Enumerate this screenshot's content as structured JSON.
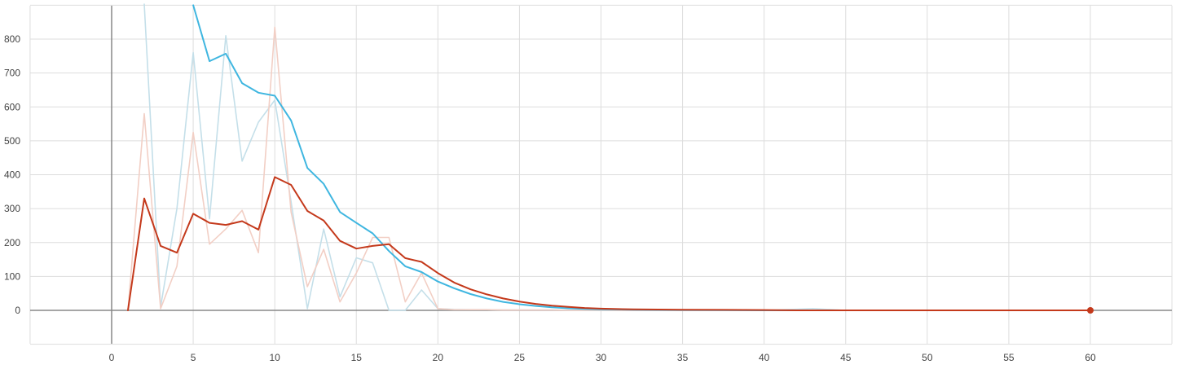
{
  "chart_data": {
    "type": "line",
    "title": "",
    "xlabel": "",
    "ylabel": "",
    "xlim": [
      -5,
      65
    ],
    "ylim": [
      -100,
      900
    ],
    "grid": true,
    "x_ticks": [
      0,
      5,
      10,
      15,
      20,
      25,
      30,
      35,
      40,
      45,
      50,
      55,
      60
    ],
    "y_ticks": [
      0,
      100,
      200,
      300,
      400,
      500,
      600,
      700,
      800
    ],
    "series": [
      {
        "color": "#c4dfe9",
        "role": "raw",
        "x": [
          2,
          3,
          4,
          5,
          6,
          7,
          8,
          9,
          10,
          11,
          12,
          13,
          14,
          15,
          16,
          17,
          18,
          19,
          20,
          21,
          22,
          23,
          24,
          25,
          26,
          27,
          28,
          29,
          30,
          35,
          40,
          43,
          45,
          50,
          55,
          60
        ],
        "y": [
          1000,
          10,
          300,
          760,
          270,
          810,
          440,
          555,
          620,
          320,
          5,
          240,
          40,
          155,
          140,
          0,
          0,
          60,
          5,
          3,
          2,
          2,
          1,
          1,
          1,
          1,
          0,
          0,
          0,
          0,
          0,
          5,
          0,
          0,
          0,
          0
        ]
      },
      {
        "color": "#f2cfc5",
        "role": "raw",
        "x": [
          1,
          2,
          3,
          4,
          5,
          6,
          7,
          8,
          9,
          10,
          11,
          12,
          13,
          14,
          15,
          16,
          17,
          18,
          19,
          20,
          21,
          22,
          23,
          24,
          25,
          26,
          27,
          28,
          29,
          30,
          35,
          40,
          45,
          50,
          55,
          60
        ],
        "y": [
          0,
          580,
          5,
          130,
          525,
          195,
          240,
          295,
          170,
          835,
          290,
          70,
          180,
          25,
          110,
          215,
          215,
          25,
          110,
          5,
          2,
          2,
          2,
          1,
          1,
          1,
          1,
          0,
          0,
          0,
          0,
          0,
          0,
          0,
          0,
          0
        ]
      },
      {
        "color": "#3fb6e0",
        "role": "smoothed",
        "x": [
          5,
          6,
          7,
          8,
          9,
          10,
          11,
          12,
          13,
          14,
          15,
          16,
          17,
          18,
          19,
          20,
          21,
          22,
          23,
          24,
          25,
          26,
          27,
          28,
          29,
          30,
          32,
          35,
          40,
          45,
          50,
          55,
          60
        ],
        "y": [
          900,
          735,
          757,
          670,
          642,
          633,
          560,
          420,
          373,
          290,
          258,
          227,
          175,
          130,
          113,
          85,
          65,
          48,
          35,
          25,
          18,
          13,
          9,
          6,
          4,
          3,
          2,
          1,
          0,
          0,
          0,
          0,
          0
        ]
      },
      {
        "color": "#c4391b",
        "role": "smoothed",
        "x": [
          1,
          2,
          3,
          4,
          5,
          6,
          7,
          8,
          9,
          10,
          11,
          12,
          13,
          14,
          15,
          16,
          17,
          18,
          19,
          20,
          21,
          22,
          23,
          24,
          25,
          26,
          27,
          28,
          29,
          30,
          32,
          35,
          40,
          42,
          45,
          50,
          55,
          60
        ],
        "y": [
          0,
          330,
          190,
          170,
          285,
          258,
          252,
          263,
          238,
          393,
          370,
          293,
          265,
          205,
          182,
          190,
          195,
          154,
          143,
          110,
          82,
          62,
          47,
          35,
          26,
          19,
          14,
          10,
          7,
          5,
          3,
          2,
          1,
          0,
          0,
          0,
          0,
          0
        ],
        "end_marker": true
      }
    ]
  }
}
